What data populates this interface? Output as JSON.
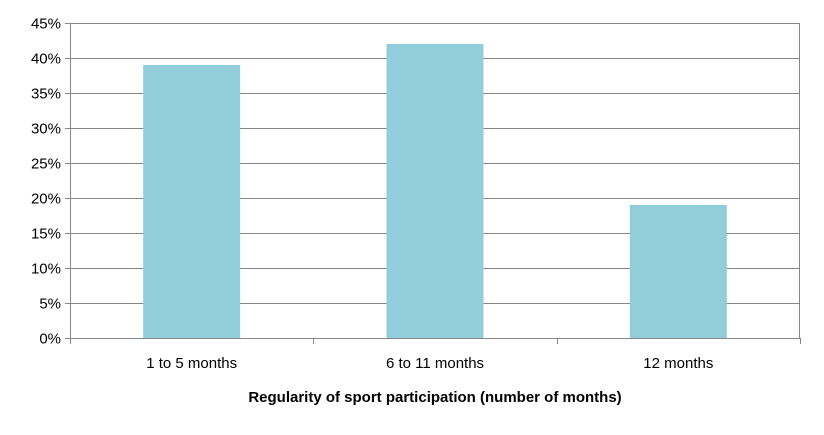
{
  "chart_data": {
    "type": "bar",
    "title": "",
    "xlabel": "Regularity of sport participation (number of months)",
    "ylabel": "",
    "categories": [
      "1 to 5 months",
      "6 to 11 months",
      "12 months"
    ],
    "values": [
      39,
      42,
      19
    ],
    "value_unit": "%",
    "ylim": [
      0,
      45
    ],
    "y_ticks": [
      0,
      5,
      10,
      15,
      20,
      25,
      30,
      35,
      40,
      45
    ],
    "y_tick_labels": [
      "0%",
      "5%",
      "10%",
      "15%",
      "20%",
      "25%",
      "30%",
      "35%",
      "40%",
      "45%"
    ],
    "grid": true,
    "legend": "none",
    "colors": {
      "bar": "#92CDDC",
      "grid": "#868686",
      "axis": "#868686",
      "text": "#000000"
    }
  }
}
